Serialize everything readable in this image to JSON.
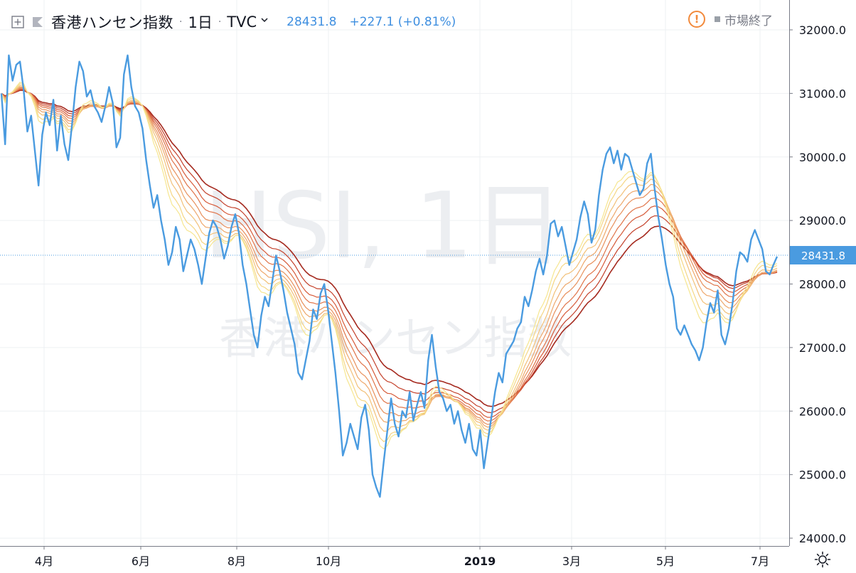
{
  "header": {
    "title": "香港ハンセン指数",
    "interval": "1日",
    "exchange": "TVC",
    "last_price": "28431.8",
    "change": "+227.1 (+0.81%)"
  },
  "market_status": {
    "label": "市場終了"
  },
  "watermark": {
    "line1": "HSI, 1日",
    "line2": "香港ハンセン指数"
  },
  "colors": {
    "price_line": "#4a9be0",
    "ribbon": [
      "#a52a1f",
      "#c4422c",
      "#d65b3a",
      "#e0754a",
      "#e8905c",
      "#eea86c",
      "#f2c078",
      "#f5d684",
      "#f6e690"
    ],
    "axis_text": "#131722",
    "grid": "#eef0f3",
    "price_tag": "#4a9be0"
  },
  "chart_data": {
    "type": "line",
    "y_range": [
      23800,
      32500
    ],
    "y_ticks": [
      "24000.0",
      "25000.0",
      "26000.0",
      "27000.0",
      "28000.0",
      "29000.0",
      "30000.0",
      "31000.0",
      "32000.0"
    ],
    "x_ticks": [
      "4月",
      "6月",
      "8月",
      "10月",
      "2019",
      "3月",
      "5月",
      "7月"
    ],
    "last_value": 28431.8,
    "last_value_label": "28431.8",
    "grid": true,
    "series": [
      {
        "values": [
          31000,
          30200,
          31600,
          31200,
          31450,
          31500,
          31050,
          30400,
          30650,
          30100,
          29550,
          30350,
          30700,
          30500,
          30900,
          30100,
          30650,
          30200,
          29950,
          30500,
          31100,
          31500,
          31350,
          30950,
          31050,
          30800,
          30700,
          30550,
          30800,
          31100,
          30850,
          30150,
          30300,
          31300,
          31600,
          31100,
          30800,
          30700,
          30450,
          29950,
          29550,
          29200,
          29400,
          29000,
          28700,
          28300,
          28500,
          28900,
          28700,
          28200,
          28450,
          28700,
          28550,
          28300,
          28000,
          28400,
          28800,
          29000,
          28900,
          28700,
          28400,
          28600,
          28900,
          29100,
          28800,
          28300,
          28000,
          27600,
          27200,
          27000,
          27500,
          27800,
          27650,
          28050,
          28450,
          28200,
          27900,
          27550,
          27300,
          27050,
          26600,
          26500,
          26800,
          27100,
          27600,
          27450,
          27850,
          28000,
          27600,
          27100,
          26600,
          26000,
          25300,
          25500,
          25800,
          25600,
          25400,
          25900,
          26100,
          25700,
          25000,
          24800,
          24650,
          25200,
          25700,
          26200,
          25800,
          25600,
          26000,
          25900,
          26300,
          25850,
          26100,
          26300,
          26050,
          26800,
          27200,
          26700,
          26300,
          26200,
          26000,
          26100,
          25800,
          26000,
          25700,
          25500,
          25800,
          25400,
          25300,
          25700,
          25100,
          25500,
          25900,
          26300,
          26600,
          26450,
          26900,
          27000,
          27100,
          27300,
          27400,
          27800,
          27650,
          27900,
          28200,
          28400,
          28150,
          28450,
          28950,
          29000,
          28750,
          28900,
          28600,
          28300,
          28500,
          28700,
          29050,
          29300,
          29100,
          28650,
          28850,
          29400,
          29800,
          30050,
          30150,
          29900,
          30100,
          29800,
          30050,
          30000,
          29800,
          29600,
          29400,
          29500,
          29900,
          30050,
          29500,
          29050,
          28700,
          28300,
          28000,
          27800,
          27300,
          27200,
          27350,
          27200,
          27050,
          26950,
          26800,
          27000,
          27400,
          27700,
          27550,
          27900,
          27200,
          27050,
          27300,
          27700,
          28200,
          28500,
          28450,
          28350,
          28700,
          28850,
          28700,
          28550,
          28200,
          28150,
          28300,
          28431.8
        ]
      }
    ]
  }
}
